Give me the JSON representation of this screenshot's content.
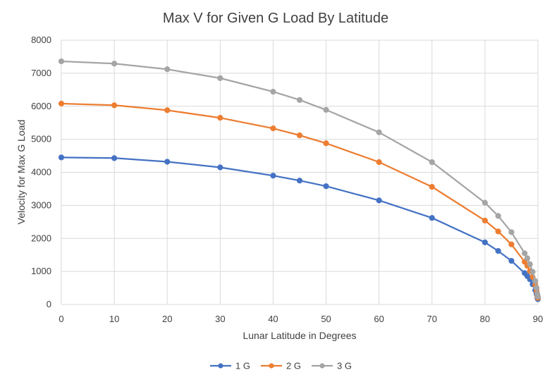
{
  "chart_data": {
    "type": "line",
    "title": "Max V for Given G Load By Latitude",
    "xlabel": "Lunar Latitude in Degrees",
    "ylabel": "Velocity for Max G Load",
    "xlim": [
      0,
      90
    ],
    "ylim": [
      0,
      8000
    ],
    "xticks": [
      0,
      10,
      20,
      30,
      40,
      50,
      60,
      70,
      80,
      90
    ],
    "yticks": [
      0,
      1000,
      2000,
      3000,
      4000,
      5000,
      6000,
      7000,
      8000
    ],
    "grid": true,
    "legend": "bottom",
    "x": [
      0,
      10,
      20,
      30,
      40,
      45,
      50,
      60,
      70,
      80,
      82.5,
      85,
      87.5,
      88,
      88.5,
      89,
      89.5,
      89.75,
      89.9,
      89.99
    ],
    "series": [
      {
        "name": "1 G",
        "color": "#4472c4",
        "values": [
          4450,
          4430,
          4320,
          4150,
          3900,
          3750,
          3580,
          3150,
          2620,
          1880,
          1620,
          1320,
          950,
          860,
          760,
          610,
          430,
          310,
          200,
          160
        ]
      },
      {
        "name": "2 G",
        "color": "#ed7d31",
        "values": [
          6080,
          6030,
          5880,
          5650,
          5330,
          5120,
          4880,
          4310,
          3560,
          2540,
          2210,
          1820,
          1290,
          1170,
          1010,
          830,
          590,
          420,
          270,
          200
        ]
      },
      {
        "name": "3 G",
        "color": "#a5a5a5",
        "values": [
          7360,
          7290,
          7120,
          6850,
          6440,
          6190,
          5890,
          5210,
          4310,
          3080,
          2680,
          2190,
          1550,
          1400,
          1220,
          990,
          710,
          500,
          320,
          240
        ]
      }
    ]
  }
}
